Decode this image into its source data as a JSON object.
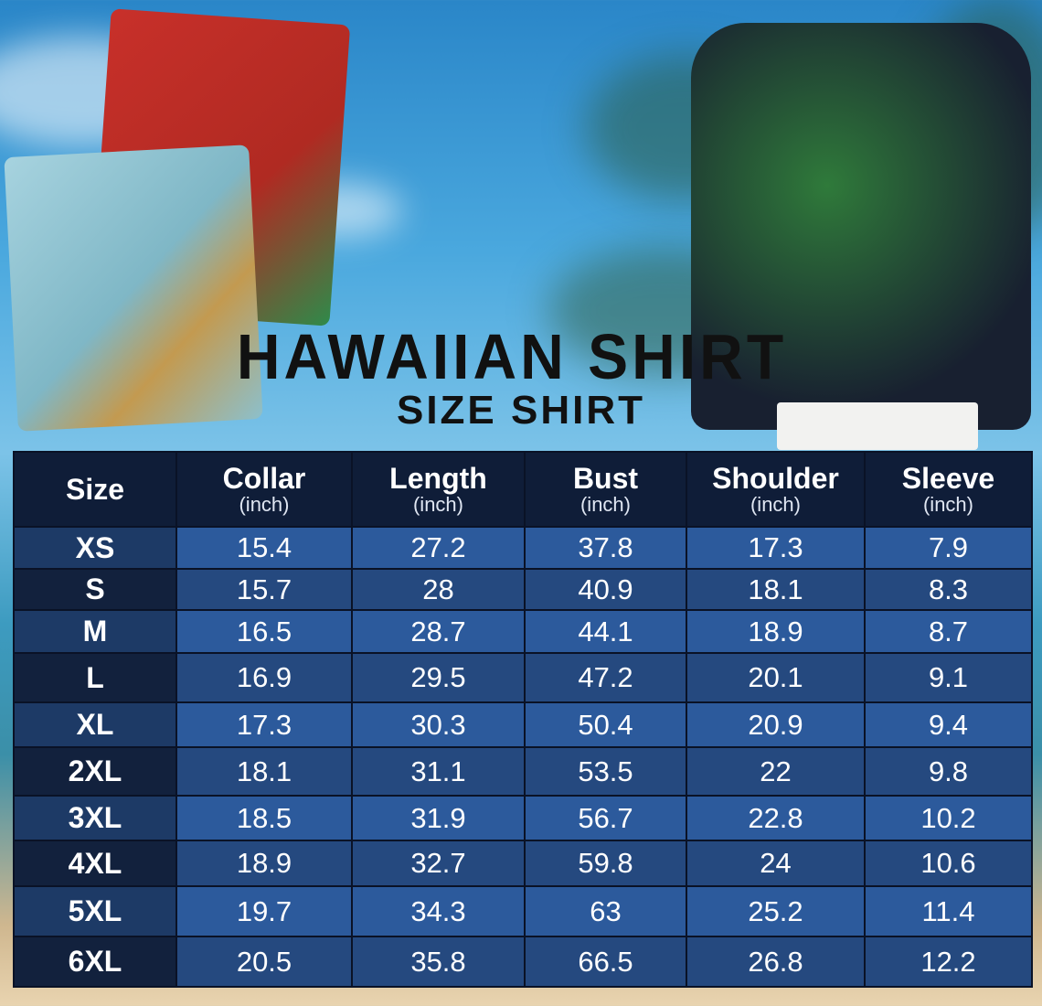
{
  "title": "HAWAIIAN SHIRT",
  "subtitle": "SIZE SHIRT",
  "headers": [
    {
      "label": "Size",
      "unit": ""
    },
    {
      "label": "Collar",
      "unit": "(inch)"
    },
    {
      "label": "Length",
      "unit": "(inch)"
    },
    {
      "label": "Bust",
      "unit": "(inch)"
    },
    {
      "label": "Shoulder",
      "unit": "(inch)"
    },
    {
      "label": "Sleeve",
      "unit": "(inch)"
    }
  ],
  "rows": [
    [
      "XS",
      "15.4",
      "27.2",
      "37.8",
      "17.3",
      "7.9"
    ],
    [
      "S",
      "15.7",
      "28",
      "40.9",
      "18.1",
      "8.3"
    ],
    [
      "M",
      "16.5",
      "28.7",
      "44.1",
      "18.9",
      "8.7"
    ],
    [
      "L",
      "16.9",
      "29.5",
      "47.2",
      "20.1",
      "9.1"
    ],
    [
      "XL",
      "17.3",
      "30.3",
      "50.4",
      "20.9",
      "9.4"
    ],
    [
      "2XL",
      "18.1",
      "31.1",
      "53.5",
      "22",
      "9.8"
    ],
    [
      "3XL",
      "18.5",
      "31.9",
      "56.7",
      "22.8",
      "10.2"
    ],
    [
      "4XL",
      "18.9",
      "32.7",
      "59.8",
      "24",
      "10.6"
    ],
    [
      "5XL",
      "19.7",
      "34.3",
      "63",
      "25.2",
      "11.4"
    ],
    [
      "6XL",
      "20.5",
      "35.8",
      "66.5",
      "26.8",
      "12.2"
    ]
  ],
  "colors": {
    "header_bg": "#0f1d38",
    "row_light": "#2c5a9c",
    "row_dark": "#25497f"
  }
}
